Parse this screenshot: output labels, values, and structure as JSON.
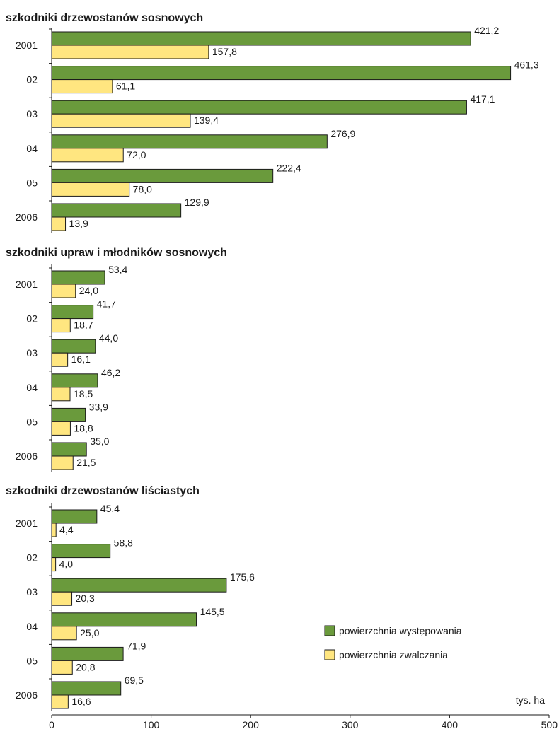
{
  "colors": {
    "occurrence": "#6a9a3c",
    "control": "#ffe680",
    "stroke": "#1a1a1a"
  },
  "legend": {
    "occurrence_label": "powierzchnia występowania",
    "control_label": "powierzchnia zwalczania"
  },
  "axis": {
    "unit": "tys. ha",
    "ticks": [
      "0",
      "100",
      "200",
      "300",
      "400",
      "500"
    ]
  },
  "chart_data": [
    {
      "type": "bar",
      "orientation": "horizontal",
      "title": "szkodniki drzewostanów sosnowych",
      "categories": [
        "2001",
        "02",
        "03",
        "04",
        "05",
        "2006"
      ],
      "series": [
        {
          "name": "powierzchnia występowania",
          "values": [
            421.2,
            461.3,
            417.1,
            276.9,
            222.4,
            129.9
          ],
          "labels": [
            "421,2",
            "461,3",
            "417,1",
            "276,9",
            "222,4",
            "129,9"
          ]
        },
        {
          "name": "powierzchnia zwalczania",
          "values": [
            157.8,
            61.1,
            139.4,
            72.0,
            78.0,
            13.9
          ],
          "labels": [
            "157,8",
            "61,1",
            "139,4",
            "72,0",
            "78,0",
            "13,9"
          ]
        }
      ],
      "xlim": [
        0,
        500
      ]
    },
    {
      "type": "bar",
      "orientation": "horizontal",
      "title": "szkodniki upraw i  młodników sosnowych",
      "categories": [
        "2001",
        "02",
        "03",
        "04",
        "05",
        "2006"
      ],
      "series": [
        {
          "name": "powierzchnia występowania",
          "values": [
            53.4,
            41.7,
            44.0,
            46.2,
            33.9,
            35.0
          ],
          "labels": [
            "53,4",
            "41,7",
            "44,0",
            "46,2",
            "33,9",
            "35,0"
          ]
        },
        {
          "name": "powierzchnia zwalczania",
          "values": [
            24.0,
            18.7,
            16.1,
            18.5,
            18.8,
            21.5
          ],
          "labels": [
            "24,0",
            "18,7",
            "16,1",
            "18,5",
            "18,8",
            "21,5"
          ]
        }
      ],
      "xlim": [
        0,
        500
      ]
    },
    {
      "type": "bar",
      "orientation": "horizontal",
      "title": "szkodniki drzewostanów liściastych",
      "categories": [
        "2001",
        "02",
        "03",
        "04",
        "05",
        "2006"
      ],
      "series": [
        {
          "name": "powierzchnia występowania",
          "values": [
            45.4,
            58.8,
            175.6,
            145.5,
            71.9,
            69.5
          ],
          "labels": [
            "45,4",
            "58,8",
            "175,6",
            "145,5",
            "71,9",
            "69,5"
          ]
        },
        {
          "name": "powierzchnia zwalczania",
          "values": [
            4.4,
            4.0,
            20.3,
            25.0,
            20.8,
            16.6
          ],
          "labels": [
            "4,4",
            "4,0",
            "20,3",
            "25,0",
            "20,8",
            "16,6"
          ]
        }
      ],
      "xlim": [
        0,
        500
      ]
    }
  ]
}
